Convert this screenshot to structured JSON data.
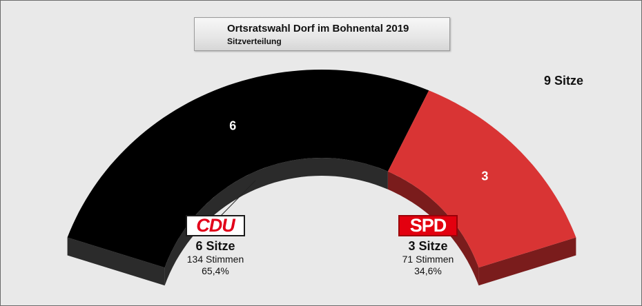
{
  "chart_data": {
    "type": "pie",
    "title": "Ortsratswahl Dorf im Bohnental 2019",
    "subtitle": "Sitzverteilung",
    "total_label": "9 Sitze",
    "total_seats": 9,
    "parties": [
      {
        "name": "CDU",
        "seats": 6,
        "seats_label": "6 Sitze",
        "votes_label": "134 Stimmen",
        "pct_label": "65,4%",
        "color": "#000000",
        "side_color": "#2b2b2b"
      },
      {
        "name": "SPD",
        "seats": 3,
        "seats_label": "3 Sitze",
        "votes_label": "71 Stimmen",
        "pct_label": "34,6%",
        "color": "#d93434",
        "side_color": "#7a1c1c"
      }
    ]
  }
}
